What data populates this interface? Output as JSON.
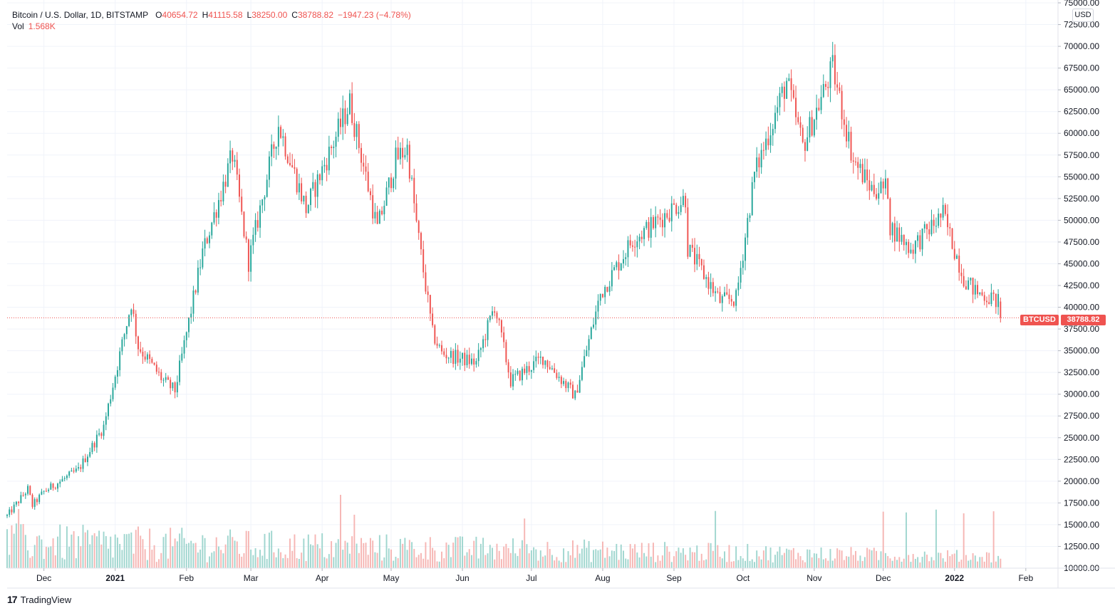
{
  "legend": {
    "symbol": "Bitcoin / U.S. Dollar, 1D, BITSTAMP",
    "o_label": "O",
    "o_value": "40654.72",
    "h_label": "H",
    "h_value": "41115.58",
    "l_label": "L",
    "l_value": "38250.00",
    "c_label": "C",
    "c_value": "38788.82",
    "change": "−1947.23 (−4.78%)",
    "vol_label": "Vol",
    "vol_value": "1.568K"
  },
  "currency": "USD",
  "price_tag": {
    "symbol": "BTCUSD",
    "value": "38788.82"
  },
  "brand": {
    "logo": "17",
    "name": "TradingView"
  },
  "colors": {
    "up": "#26a69a",
    "down": "#ef5350",
    "up_vol": "#8fcfc7",
    "down_vol": "#f5a9a7",
    "grid": "#f0f3fa",
    "text": "#131722"
  },
  "chart_data": {
    "type": "candlestick",
    "title": "Bitcoin / U.S. Dollar, 1D, BITSTAMP",
    "y_range": [
      10000,
      75000
    ],
    "y_ticks": [
      "10000.00",
      "12500.00",
      "15000.00",
      "17500.00",
      "20000.00",
      "22500.00",
      "25000.00",
      "27500.00",
      "30000.00",
      "32500.00",
      "35000.00",
      "37500.00",
      "40000.00",
      "42500.00",
      "45000.00",
      "47500.00",
      "50000.00",
      "52500.00",
      "55000.00",
      "57500.00",
      "60000.00",
      "62500.00",
      "65000.00",
      "67500.00",
      "70000.00",
      "72500.00",
      "75000.00"
    ],
    "x_range": [
      "2020-11-15",
      "2022-02-15"
    ],
    "x_ticks": [
      {
        "date": "2020-12-01",
        "label": "Dec"
      },
      {
        "date": "2021-01-01",
        "label": "2021"
      },
      {
        "date": "2021-02-01",
        "label": "Feb"
      },
      {
        "date": "2021-03-01",
        "label": "Mar"
      },
      {
        "date": "2021-04-01",
        "label": "Apr"
      },
      {
        "date": "2021-05-01",
        "label": "May"
      },
      {
        "date": "2021-06-01",
        "label": "Jun"
      },
      {
        "date": "2021-07-01",
        "label": "Jul"
      },
      {
        "date": "2021-08-01",
        "label": "Aug"
      },
      {
        "date": "2021-09-01",
        "label": "Sep"
      },
      {
        "date": "2021-10-01",
        "label": "Oct"
      },
      {
        "date": "2021-11-01",
        "label": "Nov"
      },
      {
        "date": "2021-12-01",
        "label": "Dec"
      },
      {
        "date": "2022-01-01",
        "label": "2022"
      },
      {
        "date": "2022-02-01",
        "label": "Feb"
      }
    ],
    "last_date": "2022-01-21",
    "last_close": 38788.82,
    "close_trend": [
      [
        "2020-11-15",
        16000
      ],
      [
        "2020-11-24",
        19100
      ],
      [
        "2020-11-26",
        17200
      ],
      [
        "2020-12-01",
        18800
      ],
      [
        "2020-12-16",
        21300
      ],
      [
        "2020-12-27",
        26300
      ],
      [
        "2021-01-08",
        40500
      ],
      [
        "2021-01-11",
        35500
      ],
      [
        "2021-01-22",
        31500
      ],
      [
        "2021-01-27",
        30400
      ],
      [
        "2021-02-08",
        46300
      ],
      [
        "2021-02-21",
        57500
      ],
      [
        "2021-02-28",
        45200
      ],
      [
        "2021-03-13",
        61000
      ],
      [
        "2021-03-25",
        51300
      ],
      [
        "2021-04-13",
        63500
      ],
      [
        "2021-04-25",
        49000
      ],
      [
        "2021-05-03",
        57000
      ],
      [
        "2021-05-08",
        58300
      ],
      [
        "2021-05-12",
        49600
      ],
      [
        "2021-05-19",
        37000
      ],
      [
        "2021-05-23",
        34700
      ],
      [
        "2021-06-07",
        33600
      ],
      [
        "2021-06-15",
        40200
      ],
      [
        "2021-06-22",
        31500
      ],
      [
        "2021-07-06",
        34200
      ],
      [
        "2021-07-20",
        29800
      ],
      [
        "2021-07-31",
        41500
      ],
      [
        "2021-08-14",
        47800
      ],
      [
        "2021-08-22",
        49300
      ],
      [
        "2021-09-06",
        52600
      ],
      [
        "2021-09-07",
        46800
      ],
      [
        "2021-09-21",
        40700
      ],
      [
        "2021-09-28",
        41000
      ],
      [
        "2021-10-06",
        55300
      ],
      [
        "2021-10-20",
        66000
      ],
      [
        "2021-10-27",
        58500
      ],
      [
        "2021-11-09",
        67500
      ],
      [
        "2021-11-18",
        56900
      ],
      [
        "2021-11-26",
        53600
      ],
      [
        "2021-12-03",
        53600
      ],
      [
        "2021-12-04",
        49300
      ],
      [
        "2021-12-13",
        46700
      ],
      [
        "2021-12-27",
        50700
      ],
      [
        "2022-01-05",
        43400
      ],
      [
        "2022-01-10",
        41800
      ],
      [
        "2022-01-20",
        40650
      ],
      [
        "2022-01-21",
        38788.82
      ]
    ]
  }
}
